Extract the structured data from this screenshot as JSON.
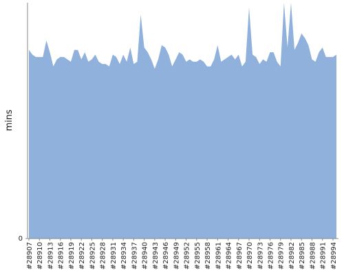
{
  "chart_data": {
    "type": "area",
    "y_label": "mins",
    "categories": [
      "#28907",
      null,
      null,
      "#28910",
      null,
      null,
      "#28913",
      null,
      null,
      "#28916",
      null,
      null,
      "#28919",
      null,
      null,
      "#28922",
      null,
      null,
      "#28925",
      null,
      null,
      "#28928",
      null,
      null,
      "#28931",
      null,
      null,
      "#28934",
      null,
      null,
      "#28937",
      null,
      null,
      "#28940",
      null,
      null,
      "#28943",
      null,
      null,
      "#28946",
      null,
      null,
      "#28949",
      null,
      null,
      "#28952",
      null,
      null,
      "#28955",
      null,
      null,
      "#28958",
      null,
      null,
      "#28961",
      null,
      null,
      "#28964",
      null,
      null,
      "#28967",
      null,
      null,
      "#28970",
      null,
      null,
      "#28973",
      null,
      null,
      "#28976",
      null,
      null,
      "#28979",
      null,
      null,
      "#28982",
      null,
      null,
      "#28985",
      null,
      null,
      "#28988",
      null,
      null,
      "#28991",
      null,
      null,
      "#28994",
      null
    ],
    "values": [
      80,
      78,
      77,
      77,
      77,
      84,
      79,
      73,
      76,
      77,
      77,
      76,
      75,
      80,
      80,
      76,
      79,
      75,
      76,
      78,
      75,
      74,
      74,
      73,
      78,
      77,
      74,
      78,
      75,
      81,
      74,
      75,
      95,
      81,
      79,
      76,
      72,
      76,
      82,
      81,
      78,
      73,
      76,
      79,
      78,
      75,
      76,
      75,
      75,
      76,
      75,
      73,
      73,
      76,
      82,
      75,
      76,
      77,
      78,
      76,
      78,
      73,
      75,
      98,
      78,
      77,
      74,
      76,
      75,
      79,
      79,
      75,
      73,
      100,
      81,
      100,
      80,
      83,
      87,
      85,
      82,
      76,
      75,
      79,
      81,
      77,
      77,
      77,
      78
    ],
    "color": "#8fb1dc",
    "ylim": [
      0,
      100
    ],
    "yticks": [
      0
    ]
  }
}
